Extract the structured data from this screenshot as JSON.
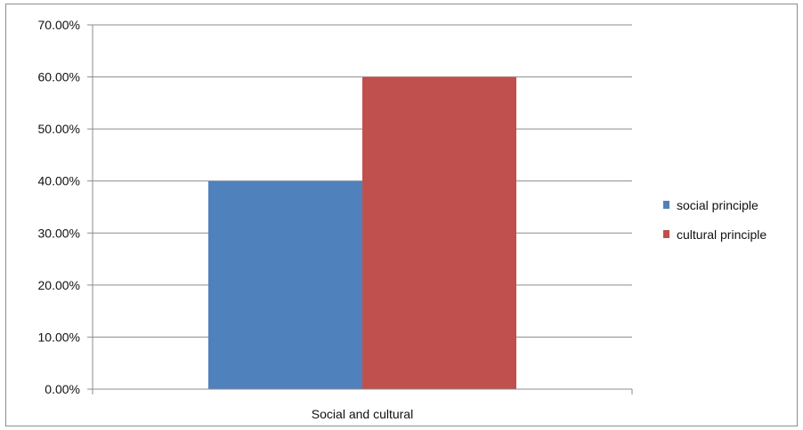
{
  "chart_data": {
    "type": "bar",
    "categories": [
      "Social and cultural"
    ],
    "series": [
      {
        "name": "social principle",
        "values": [
          0.4
        ],
        "color": "#4f81bd"
      },
      {
        "name": "cultural principle",
        "values": [
          0.6
        ],
        "color": "#c0504d"
      }
    ],
    "ylim": [
      0,
      0.7
    ],
    "yticks": [
      "0.00%",
      "10.00%",
      "20.00%",
      "30.00%",
      "40.00%",
      "50.00%",
      "60.00%",
      "70.00%"
    ],
    "grid": true,
    "legend": "right",
    "title": "",
    "xlabel": "",
    "ylabel": ""
  }
}
